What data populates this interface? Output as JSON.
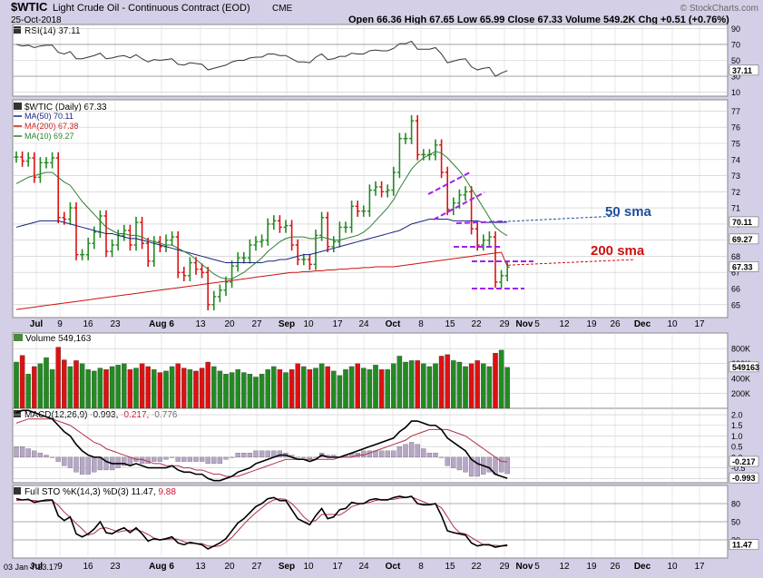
{
  "header": {
    "symbol": "$WTIC",
    "name": "Light Crude Oil - Continuous Contract (EOD)",
    "exchange": "CME",
    "date": "25-Oct-2018",
    "ohlc": "Open 66.36  High 67.65  Low 65.99  Close 67.33  Volume 549.2K  Chg +0.51 (+0.76%)",
    "brand": "© StockCharts.com"
  },
  "colors": {
    "background": "#d4cfe6",
    "panel": "#ffffff",
    "up": "#228b22",
    "down": "#dd1111",
    "ma50": "#1a237e",
    "ma200": "#cc1111",
    "ma10": "#2e7d32",
    "annotation_purple": "#a020f0",
    "annotation_blue": "#1f4e9c",
    "annotation_red": "#cc1111"
  },
  "chart_data": {
    "type": "candlestick",
    "dates": [
      "2018-06-29",
      "2018-07-02",
      "2018-07-03",
      "2018-07-05",
      "2018-07-06",
      "2018-07-09",
      "2018-07-10",
      "2018-07-11",
      "2018-07-12",
      "2018-07-13",
      "2018-07-16",
      "2018-07-17",
      "2018-07-18",
      "2018-07-19",
      "2018-07-20",
      "2018-07-23",
      "2018-07-24",
      "2018-07-25",
      "2018-07-26",
      "2018-07-27",
      "2018-07-30",
      "2018-07-31",
      "2018-08-01",
      "2018-08-02",
      "2018-08-03",
      "2018-08-06",
      "2018-08-07",
      "2018-08-08",
      "2018-08-09",
      "2018-08-10",
      "2018-08-13",
      "2018-08-14",
      "2018-08-15",
      "2018-08-16",
      "2018-08-17",
      "2018-08-20",
      "2018-08-21",
      "2018-08-22",
      "2018-08-23",
      "2018-08-24",
      "2018-08-27",
      "2018-08-28",
      "2018-08-29",
      "2018-08-30",
      "2018-08-31",
      "2018-09-04",
      "2018-09-05",
      "2018-09-06",
      "2018-09-07",
      "2018-09-10",
      "2018-09-11",
      "2018-09-12",
      "2018-09-13",
      "2018-09-14",
      "2018-09-17",
      "2018-09-18",
      "2018-09-19",
      "2018-09-20",
      "2018-09-21",
      "2018-09-24",
      "2018-09-25",
      "2018-09-26",
      "2018-09-27",
      "2018-09-28",
      "2018-10-01",
      "2018-10-02",
      "2018-10-03",
      "2018-10-04",
      "2018-10-05",
      "2018-10-08",
      "2018-10-09",
      "2018-10-10",
      "2018-10-11",
      "2018-10-12",
      "2018-10-15",
      "2018-10-16",
      "2018-10-17",
      "2018-10-18",
      "2018-10-19",
      "2018-10-22",
      "2018-10-23",
      "2018-10-24",
      "2018-10-25"
    ],
    "close": [
      74.15,
      73.9,
      74.1,
      72.9,
      73.8,
      73.8,
      74.1,
      70.4,
      70.3,
      71.0,
      68.1,
      68.1,
      68.8,
      69.5,
      70.5,
      68.3,
      68.7,
      69.3,
      69.6,
      68.7,
      70.1,
      68.8,
      67.7,
      68.9,
      68.6,
      69.0,
      69.2,
      67.0,
      66.8,
      67.6,
      67.2,
      67.0,
      65.0,
      65.5,
      65.9,
      66.4,
      67.4,
      67.9,
      67.9,
      68.7,
      68.9,
      69.0,
      70.0,
      70.2,
      69.8,
      69.9,
      68.7,
      67.8,
      67.8,
      67.5,
      69.3,
      70.4,
      68.6,
      68.9,
      69.8,
      69.8,
      71.1,
      70.8,
      70.8,
      72.1,
      72.3,
      72.0,
      72.1,
      73.2,
      75.3,
      75.3,
      76.4,
      74.3,
      74.3,
      74.3,
      74.9,
      73.2,
      70.9,
      71.3,
      71.8,
      72.0,
      69.7,
      68.7,
      69.0,
      69.2,
      66.4,
      66.8,
      67.33
    ],
    "volume_k": [
      620,
      710,
      460,
      560,
      600,
      680,
      520,
      820,
      650,
      560,
      640,
      600,
      520,
      500,
      540,
      520,
      560,
      580,
      600,
      520,
      540,
      600,
      560,
      520,
      480,
      500,
      560,
      600,
      540,
      520,
      500,
      540,
      620,
      560,
      500,
      460,
      480,
      520,
      480,
      460,
      420,
      460,
      520,
      560,
      520,
      480,
      520,
      600,
      560,
      520,
      540,
      600,
      560,
      500,
      440,
      520,
      560,
      600,
      540,
      520,
      580,
      520,
      520,
      600,
      700,
      620,
      640,
      640,
      600,
      560,
      600,
      700,
      720,
      640,
      620,
      560,
      600,
      640,
      600,
      560,
      740,
      780,
      549.163
    ],
    "rsi": [
      70,
      68,
      69,
      66,
      68,
      69,
      69,
      60,
      58,
      61,
      52,
      52,
      54,
      56,
      59,
      52,
      53,
      55,
      56,
      53,
      57,
      52,
      48,
      51,
      50,
      51,
      52,
      45,
      44,
      47,
      46,
      45,
      38,
      40,
      42,
      44,
      48,
      50,
      50,
      53,
      54,
      54,
      58,
      58,
      56,
      56,
      52,
      48,
      48,
      47,
      54,
      58,
      51,
      52,
      55,
      55,
      59,
      58,
      58,
      62,
      63,
      62,
      62,
      65,
      71,
      71,
      74,
      64,
      64,
      64,
      66,
      58,
      47,
      49,
      51,
      52,
      42,
      38,
      40,
      41,
      30,
      34,
      37.11
    ],
    "ma50": [
      69.8,
      69.9,
      70.0,
      70.1,
      70.2,
      70.2,
      70.2,
      70.2,
      70.1,
      70.0,
      69.9,
      69.8,
      69.7,
      69.6,
      69.5,
      69.4,
      69.4,
      69.3,
      69.2,
      69.1,
      69.1,
      69.0,
      68.9,
      68.8,
      68.7,
      68.6,
      68.5,
      68.4,
      68.3,
      68.2,
      68.1,
      68.0,
      67.9,
      67.8,
      67.7,
      67.6,
      67.6,
      67.6,
      67.6,
      67.6,
      67.6,
      67.6,
      67.7,
      67.7,
      67.8,
      67.8,
      67.9,
      68.0,
      68.1,
      68.1,
      68.2,
      68.3,
      68.4,
      68.5,
      68.6,
      68.7,
      68.8,
      68.9,
      69.0,
      69.1,
      69.2,
      69.3,
      69.4,
      69.5,
      69.6,
      69.8,
      70.0,
      70.1,
      70.2,
      70.3,
      70.3,
      70.3,
      70.3,
      70.2,
      70.2,
      70.2,
      70.2,
      70.2,
      70.1,
      70.1,
      70.1,
      70.1,
      70.11
    ],
    "ma200": [
      64.7,
      64.75,
      64.8,
      64.85,
      64.9,
      64.95,
      65.0,
      65.05,
      65.1,
      65.15,
      65.2,
      65.25,
      65.3,
      65.35,
      65.4,
      65.45,
      65.5,
      65.55,
      65.6,
      65.65,
      65.7,
      65.75,
      65.8,
      65.85,
      65.9,
      65.95,
      66.0,
      66.05,
      66.1,
      66.15,
      66.2,
      66.25,
      66.3,
      66.35,
      66.4,
      66.45,
      66.5,
      66.55,
      66.6,
      66.65,
      66.7,
      66.75,
      66.8,
      66.85,
      66.9,
      66.95,
      67.0,
      67.0,
      67.05,
      67.05,
      67.1,
      67.1,
      67.15,
      67.15,
      67.2,
      67.2,
      67.25,
      67.25,
      67.3,
      67.3,
      67.35,
      67.35,
      67.35,
      67.35,
      67.4,
      67.45,
      67.5,
      67.55,
      67.6,
      67.65,
      67.7,
      67.75,
      67.8,
      67.85,
      67.9,
      67.95,
      68.0,
      68.05,
      68.1,
      68.15,
      68.2,
      68.25,
      67.38
    ],
    "ma10": [
      72.5,
      72.7,
      72.9,
      73.0,
      73.1,
      73.2,
      73.2,
      72.9,
      72.6,
      72.4,
      71.9,
      71.4,
      71.0,
      70.6,
      70.2,
      69.8,
      69.6,
      69.4,
      69.4,
      69.3,
      69.3,
      69.2,
      69.0,
      68.9,
      68.8,
      68.7,
      68.7,
      68.5,
      68.3,
      68.1,
      67.8,
      67.5,
      67.2,
      66.9,
      66.7,
      66.6,
      66.6,
      66.8,
      67.0,
      67.3,
      67.6,
      67.9,
      68.3,
      68.6,
      68.9,
      69.1,
      69.2,
      69.2,
      69.2,
      69.1,
      69.1,
      69.2,
      69.1,
      69.0,
      69.0,
      69.1,
      69.2,
      69.3,
      69.5,
      69.8,
      70.2,
      70.6,
      71.0,
      71.5,
      72.2,
      72.8,
      73.4,
      73.8,
      74.1,
      74.3,
      74.5,
      74.4,
      74.1,
      73.7,
      73.3,
      72.8,
      72.2,
      71.6,
      71.0,
      70.4,
      69.8,
      69.5,
      69.27
    ],
    "macd": [
      2.1,
      2.2,
      2.2,
      2.1,
      2.0,
      1.9,
      1.8,
      1.5,
      1.2,
      1.0,
      0.6,
      0.3,
      0.1,
      0.0,
      0.0,
      -0.2,
      -0.3,
      -0.3,
      -0.3,
      -0.4,
      -0.3,
      -0.4,
      -0.5,
      -0.5,
      -0.5,
      -0.5,
      -0.4,
      -0.6,
      -0.7,
      -0.7,
      -0.8,
      -0.8,
      -1.0,
      -1.1,
      -1.1,
      -1.0,
      -0.9,
      -0.7,
      -0.6,
      -0.5,
      -0.3,
      -0.2,
      -0.1,
      0.0,
      0.1,
      0.1,
      0.0,
      -0.1,
      -0.1,
      -0.2,
      -0.1,
      0.1,
      0.0,
      0.0,
      0.0,
      0.1,
      0.2,
      0.3,
      0.4,
      0.5,
      0.6,
      0.7,
      0.8,
      0.9,
      1.2,
      1.4,
      1.7,
      1.7,
      1.6,
      1.5,
      1.5,
      1.3,
      0.9,
      0.7,
      0.5,
      0.3,
      -0.1,
      -0.3,
      -0.4,
      -0.5,
      -0.8,
      -0.9,
      -0.993
    ],
    "macd_signal": [
      1.6,
      1.7,
      1.8,
      1.8,
      1.8,
      1.8,
      1.8,
      1.7,
      1.6,
      1.5,
      1.3,
      1.1,
      0.9,
      0.7,
      0.6,
      0.4,
      0.3,
      0.2,
      0.1,
      0.0,
      -0.1,
      -0.1,
      -0.2,
      -0.3,
      -0.3,
      -0.4,
      -0.4,
      -0.4,
      -0.5,
      -0.5,
      -0.6,
      -0.6,
      -0.7,
      -0.8,
      -0.8,
      -0.9,
      -0.9,
      -0.9,
      -0.8,
      -0.7,
      -0.6,
      -0.5,
      -0.4,
      -0.3,
      -0.2,
      -0.1,
      -0.1,
      -0.1,
      -0.1,
      -0.1,
      -0.1,
      -0.1,
      -0.1,
      -0.1,
      0.0,
      0.0,
      0.0,
      0.1,
      0.1,
      0.2,
      0.3,
      0.4,
      0.5,
      0.6,
      0.7,
      0.8,
      1.0,
      1.1,
      1.2,
      1.3,
      1.3,
      1.3,
      1.3,
      1.2,
      1.1,
      1.0,
      0.8,
      0.6,
      0.4,
      0.2,
      0.0,
      -0.2,
      -0.217
    ],
    "sto_k": [
      88,
      86,
      87,
      82,
      84,
      86,
      86,
      60,
      52,
      58,
      30,
      25,
      30,
      38,
      50,
      32,
      30,
      36,
      40,
      32,
      40,
      30,
      18,
      22,
      20,
      22,
      25,
      15,
      12,
      16,
      14,
      12,
      5,
      10,
      15,
      22,
      35,
      48,
      55,
      65,
      75,
      80,
      88,
      90,
      85,
      85,
      70,
      55,
      50,
      45,
      60,
      72,
      55,
      58,
      70,
      72,
      82,
      80,
      80,
      86,
      88,
      86,
      86,
      90,
      92,
      90,
      92,
      80,
      78,
      78,
      80,
      60,
      35,
      32,
      30,
      28,
      15,
      10,
      12,
      12,
      8,
      10,
      11.47
    ],
    "sto_d": [
      85,
      86,
      86,
      85,
      84,
      84,
      85,
      77,
      66,
      57,
      47,
      38,
      28,
      31,
      39,
      40,
      37,
      33,
      35,
      36,
      37,
      34,
      29,
      23,
      20,
      21,
      22,
      21,
      17,
      14,
      14,
      14,
      10,
      9,
      10,
      16,
      24,
      35,
      46,
      56,
      65,
      73,
      81,
      86,
      88,
      87,
      80,
      70,
      58,
      50,
      52,
      62,
      62,
      62,
      61,
      67,
      75,
      78,
      81,
      82,
      85,
      87,
      87,
      87,
      89,
      90,
      91,
      87,
      83,
      79,
      79,
      73,
      58,
      42,
      32,
      30,
      24,
      18,
      12,
      11,
      11,
      10,
      9.88
    ],
    "price_ylim": [
      64.2,
      77.7
    ],
    "volume_ylim": [
      0,
      900
    ],
    "rsi_ylim": [
      5,
      95
    ],
    "macd_ylim": [
      -1.2,
      2.3
    ],
    "sto_ylim": [
      -10,
      110
    ]
  },
  "panels": {
    "rsi": {
      "label": "RSI(14) 37.11",
      "ticks": [
        "90",
        "70",
        "50",
        "30",
        "10"
      ],
      "last": "37.11"
    },
    "price": {
      "label": "$WTIC (Daily) 67.33",
      "legend": [
        {
          "key": "ma50",
          "text": "MA(50) 70.11"
        },
        {
          "key": "ma200",
          "text": "MA(200) 67.38"
        },
        {
          "key": "ma10",
          "text": "MA(10) 69.27"
        }
      ],
      "ticks": [
        "77",
        "76",
        "75",
        "74",
        "73",
        "72",
        "71",
        "70",
        "69",
        "68",
        "67",
        "66",
        "65"
      ],
      "tags": [
        "70.11",
        "69.27",
        "67.33"
      ]
    },
    "volume": {
      "label": "Volume 549,163",
      "ticks": [
        "800K",
        "600K",
        "400K",
        "200K"
      ],
      "tag": "549163"
    },
    "macd": {
      "label_prefix": "MACD(12,26,9) -0.993, ",
      "label_mid": "-0.217, ",
      "label_end": "-0.776",
      "ticks": [
        "2.0",
        "1.5",
        "1.0",
        "0.5",
        "0.0",
        "-0.5",
        "-1.0"
      ],
      "tags": [
        "-0.217",
        "-0.993"
      ]
    },
    "sto": {
      "label_prefix": "Full STO %K(14,3) %D(3) 11.47, ",
      "label_end": "9.88",
      "ticks": [
        "80",
        "50",
        "20"
      ],
      "tag": "11.47"
    }
  },
  "annotations": {
    "sma50": "50 sma",
    "sma200": "200 sma"
  },
  "x_labels": [
    "Jul",
    "9",
    "16",
    "23",
    "Aug 6",
    "13",
    "20",
    "27",
    "Sep",
    "10",
    "17",
    "24",
    "Oct",
    "8",
    "15",
    "22",
    "29",
    "Nov",
    "5",
    "12",
    "19",
    "26",
    "Dec",
    "10",
    "17"
  ],
  "footer": {
    "stamp": "03 Jan Y:23.17"
  }
}
